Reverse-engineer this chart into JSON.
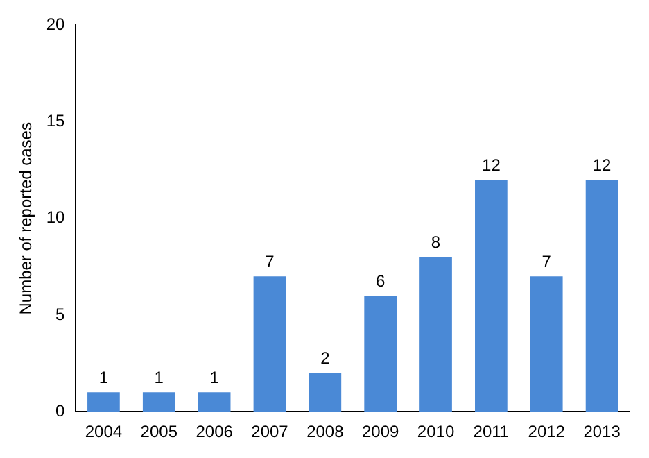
{
  "chart_data": {
    "type": "bar",
    "ylabel": "Number of reported cases",
    "categories": [
      "2004",
      "2005",
      "2006",
      "2007",
      "2008",
      "2009",
      "2010",
      "2011",
      "2012",
      "2013"
    ],
    "values": [
      1,
      1,
      1,
      7,
      2,
      6,
      8,
      12,
      7,
      12
    ],
    "color": "#4a89d6",
    "ylim": [
      0,
      20
    ],
    "yticks": [
      0,
      5,
      10,
      15,
      20
    ],
    "grid": false,
    "data_labels": true
  }
}
